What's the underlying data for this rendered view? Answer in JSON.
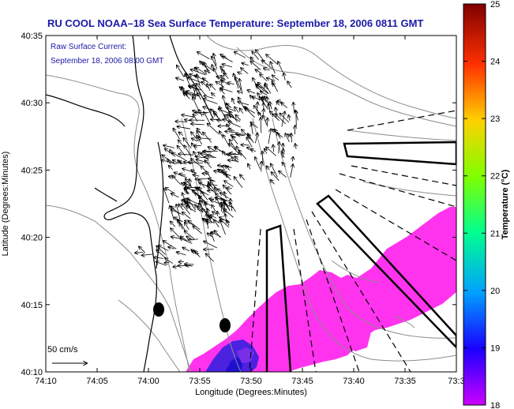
{
  "figure": {
    "title": "RU COOL  NOAA–18  Sea Surface Temperature:  September 18, 2006 0811 GMT",
    "note_line1": "Raw Surface Current:",
    "note_line2": "September 18, 2006 08:00 GMT",
    "xlabel": "Longitude (Degrees:Minutes)",
    "ylabel": "Latitude (Degrees:Minutes)",
    "scale_label": "50 cm/s",
    "x_ticks": [
      "74:10",
      "74:05",
      "74:00",
      "73:55",
      "73:50",
      "73:45",
      "73:40",
      "73:35",
      "73:3"
    ],
    "y_ticks": [
      "40:10",
      "40:15",
      "40:20",
      "40:25",
      "40:30",
      "40:35"
    ]
  },
  "colorbar": {
    "label": "Temperature (°C)",
    "ticks": [
      "18",
      "19",
      "20",
      "21",
      "22",
      "23",
      "24",
      "25"
    ],
    "range": [
      18,
      25
    ],
    "colors": [
      "#cc00ff",
      "#0000ff",
      "#00ffff",
      "#00ff00",
      "#ffff00",
      "#ff8000",
      "#ff0000",
      "#800000"
    ]
  },
  "map": {
    "land_color": "#ffffff",
    "sst_color": "#ff33ff",
    "coast_color": "#000000",
    "bathymetry_color": "#8c8c8c"
  }
}
